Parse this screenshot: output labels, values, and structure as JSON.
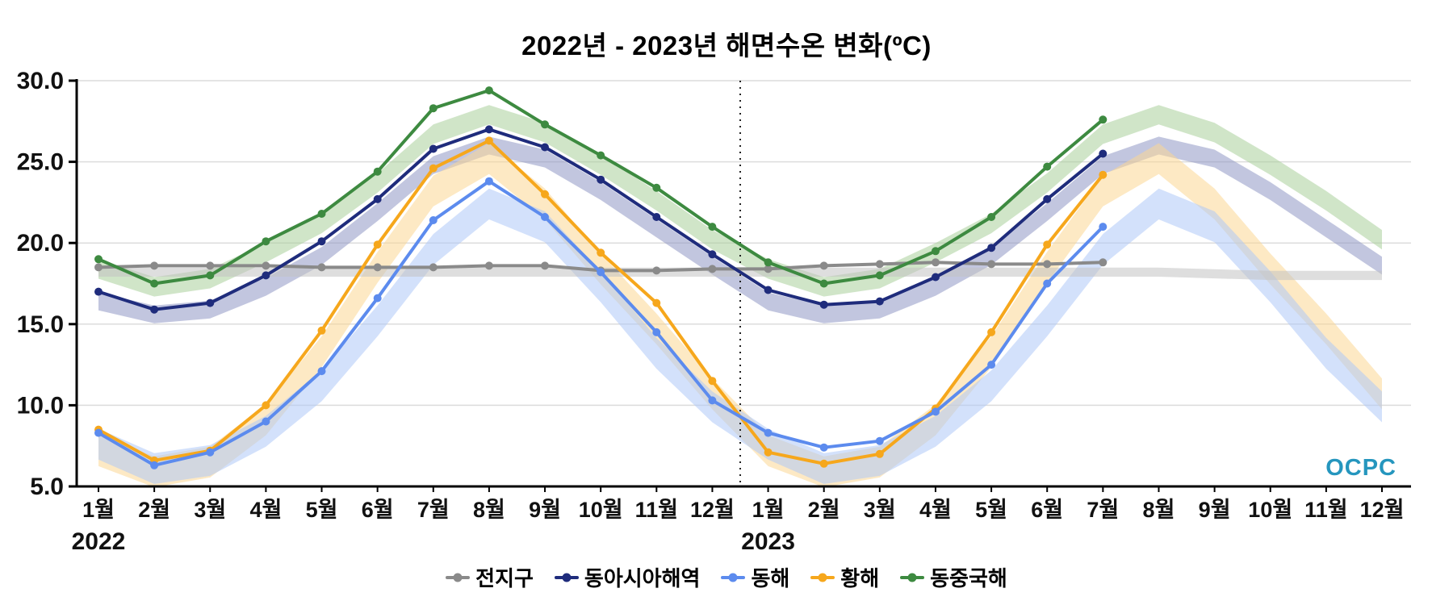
{
  "chart_data": {
    "type": "line",
    "title": "2022년 - 2023년 해면수온 변화(ºC)",
    "xlabel": "",
    "ylabel": "",
    "ylim": [
      5.0,
      30.0
    ],
    "yticks": [
      5.0,
      10.0,
      15.0,
      20.0,
      25.0,
      30.0
    ],
    "ytick_labels": [
      "5.0",
      "10.0",
      "15.0",
      "20.0",
      "25.0",
      "30.0"
    ],
    "x_labels": [
      "1월",
      "2월",
      "3월",
      "4월",
      "5월",
      "6월",
      "7월",
      "8월",
      "9월",
      "10월",
      "11월",
      "12월",
      "1월",
      "2월",
      "3월",
      "4월",
      "5월",
      "6월",
      "7월",
      "8월",
      "9월",
      "10월",
      "11월",
      "12월"
    ],
    "year_labels": [
      {
        "text": "2022",
        "month_index": 0
      },
      {
        "text": "2023",
        "month_index": 12
      }
    ],
    "divider_month_index": 11.5,
    "grid": true,
    "legend_position": "bottom",
    "logo": "OCPC",
    "band_draw_order": [
      "east-china-sea",
      "east-asia",
      "yellow-sea",
      "east-sea",
      "global"
    ],
    "line_draw_order": [
      "global",
      "east-china-sea",
      "east-asia",
      "yellow-sea",
      "east-sea"
    ],
    "series": [
      {
        "id": "global",
        "name": "전지구",
        "color": "#8a8a8a",
        "band_color": "#c2c2c2",
        "band_half_width": 0.28,
        "values": [
          18.5,
          18.6,
          18.6,
          18.6,
          18.5,
          18.5,
          18.5,
          18.6,
          18.6,
          18.3,
          18.3,
          18.4,
          18.4,
          18.6,
          18.7,
          18.8,
          18.7,
          18.7,
          18.8
        ],
        "band_center": [
          18.2,
          18.2,
          18.2,
          18.2,
          18.2,
          18.2,
          18.2,
          18.2,
          18.2,
          18.2,
          18.2,
          18.2,
          18.2,
          18.2,
          18.2,
          18.2,
          18.2,
          18.2,
          18.2,
          18.2,
          18.1,
          18.0,
          18.0,
          18.0
        ]
      },
      {
        "id": "east-asia",
        "name": "동아시아해역",
        "color": "#1f2c7c",
        "band_color": "#8f97c4",
        "band_half_width": 0.55,
        "values": [
          17.0,
          15.9,
          16.3,
          18.0,
          20.1,
          22.7,
          25.8,
          27.0,
          25.9,
          23.9,
          21.6,
          19.3,
          17.1,
          16.2,
          16.4,
          17.9,
          19.7,
          22.7,
          25.5
        ],
        "band_center": [
          16.4,
          15.6,
          15.9,
          17.3,
          19.2,
          21.9,
          24.8,
          26.0,
          25.2,
          23.2,
          20.9,
          18.6,
          16.4,
          15.6,
          15.9,
          17.3,
          19.2,
          21.9,
          24.8,
          26.0,
          25.2,
          23.2,
          20.9,
          18.6
        ]
      },
      {
        "id": "east-sea",
        "name": "동해",
        "color": "#5c8bee",
        "band_color": "#aec8f7",
        "band_half_width": 0.95,
        "values": [
          8.3,
          6.3,
          7.1,
          9.0,
          12.1,
          16.6,
          21.4,
          23.8,
          21.6,
          18.2,
          14.5,
          10.3,
          8.3,
          7.4,
          7.8,
          9.6,
          12.5,
          17.5,
          21.0
        ],
        "band_center": [
          7.6,
          6.1,
          6.6,
          8.4,
          11.2,
          15.2,
          19.6,
          22.4,
          21.0,
          17.3,
          13.2,
          9.9,
          7.6,
          6.1,
          6.6,
          8.4,
          11.2,
          15.2,
          19.6,
          22.4,
          21.0,
          17.3,
          13.2,
          9.9
        ]
      },
      {
        "id": "yellow-sea",
        "name": "황해",
        "color": "#f6a71c",
        "band_color": "#fbd794",
        "band_half_width": 0.95,
        "values": [
          8.5,
          6.6,
          7.2,
          10.0,
          14.6,
          19.9,
          24.6,
          26.3,
          23.0,
          19.4,
          16.3,
          11.5,
          7.1,
          6.4,
          7.0,
          9.8,
          14.5,
          19.9,
          24.2
        ],
        "band_center": [
          7.2,
          5.9,
          6.5,
          9.1,
          13.3,
          18.5,
          23.2,
          25.2,
          22.4,
          18.4,
          14.7,
          10.7,
          7.2,
          5.9,
          6.5,
          9.1,
          13.3,
          18.5,
          23.2,
          25.2,
          22.4,
          18.4,
          14.7,
          10.7
        ]
      },
      {
        "id": "east-china-sea",
        "name": "동중국해",
        "color": "#3d8a40",
        "band_color": "#a9cf9a",
        "band_half_width": 0.6,
        "values": [
          19.0,
          17.5,
          18.0,
          20.1,
          21.8,
          24.4,
          28.3,
          29.4,
          27.3,
          25.4,
          23.4,
          21.0,
          18.8,
          17.5,
          18.0,
          19.5,
          21.6,
          24.7,
          27.6
        ],
        "band_center": [
          18.4,
          17.3,
          17.8,
          19.4,
          21.2,
          23.7,
          26.7,
          27.9,
          26.8,
          24.8,
          22.6,
          20.2,
          18.4,
          17.3,
          17.8,
          19.4,
          21.2,
          23.7,
          26.7,
          27.9,
          26.8,
          24.8,
          22.6,
          20.2
        ]
      }
    ]
  }
}
